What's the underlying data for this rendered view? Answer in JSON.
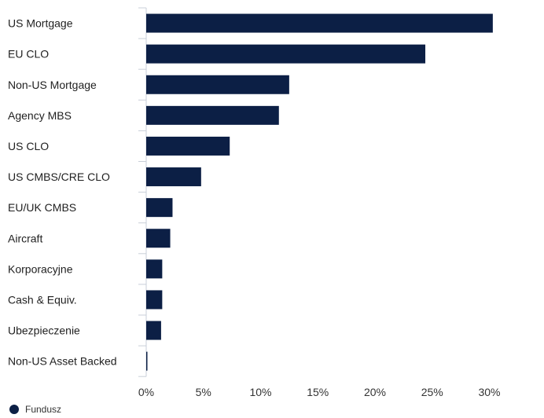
{
  "chart_data": {
    "type": "bar",
    "orientation": "horizontal",
    "categories": [
      "US Mortgage",
      "EU CLO",
      "Non-US Mortgage",
      "Agency MBS",
      "US CLO",
      "US CMBS/CRE CLO",
      "EU/UK CMBS",
      "Aircraft",
      "Korporacyjne",
      "Cash & Equiv.",
      "Ubezpieczenie",
      "Non-US Asset Backed"
    ],
    "series": [
      {
        "name": "Fundusz",
        "color": "#0c1f45",
        "values": [
          30.3,
          24.4,
          12.5,
          11.6,
          7.3,
          4.8,
          2.3,
          2.1,
          1.4,
          1.4,
          1.3,
          0.1
        ]
      }
    ],
    "x_ticks": [
      "0%",
      "5%",
      "10%",
      "15%",
      "20%",
      "25%",
      "30%"
    ],
    "xlim": [
      0,
      35
    ],
    "grid": false,
    "legend_position": "bottom-left",
    "title": "",
    "xlabel": "",
    "ylabel": ""
  }
}
